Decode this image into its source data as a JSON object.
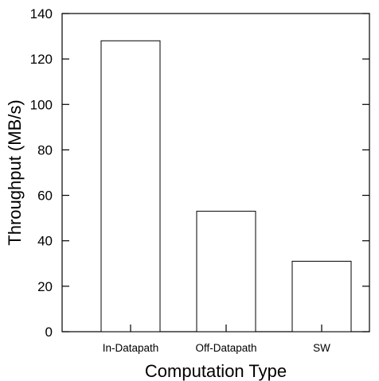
{
  "chart_data": {
    "type": "bar",
    "categories": [
      "In-Datapath",
      "Off-Datapath",
      "SW"
    ],
    "values": [
      128,
      53,
      31
    ],
    "title": "",
    "xlabel": "Computation Type",
    "ylabel": "Throughput (MB/s)",
    "ylim": [
      0,
      140
    ],
    "yticks": [
      0,
      20,
      40,
      60,
      80,
      100,
      120,
      140
    ],
    "grid": false,
    "bar_fill": "#ffffff",
    "bar_stroke": "#000000"
  }
}
